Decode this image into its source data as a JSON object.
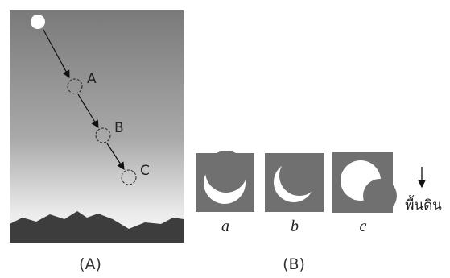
{
  "panel_a": {
    "caption": "(A)",
    "points": [
      "A",
      "B",
      "C"
    ]
  },
  "panel_b": {
    "caption": "(B)",
    "thumbnails": [
      "a",
      "b",
      "c"
    ],
    "ground_label": "พื้นดิน"
  }
}
